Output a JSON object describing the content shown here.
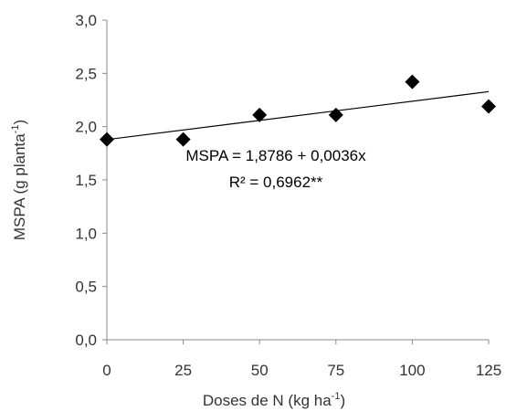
{
  "chart_data": {
    "type": "scatter",
    "xlabel": {
      "main": "Doses de N (kg ha",
      "sup": "-1",
      "end": ")"
    },
    "ylabel": {
      "main": "MSPA (g planta",
      "sup": "-1",
      "end": ")"
    },
    "x": [
      0,
      25,
      50,
      75,
      100,
      125
    ],
    "y": [
      1.88,
      1.88,
      2.11,
      2.11,
      2.42,
      2.19
    ],
    "xticks": [
      "0",
      "25",
      "50",
      "75",
      "100",
      "125"
    ],
    "xtick_values": [
      0,
      25,
      50,
      75,
      100,
      125
    ],
    "yticks": [
      "0,0",
      "0,5",
      "1,0",
      "1,5",
      "2,0",
      "2,5",
      "3,0"
    ],
    "ytick_values": [
      0,
      0.5,
      1.0,
      1.5,
      2.0,
      2.5,
      3.0
    ],
    "xlim": [
      0,
      125
    ],
    "ylim": [
      0,
      3.0
    ],
    "grid": false,
    "marker": "diamond",
    "marker_color": "#000000",
    "trendline": {
      "intercept": 1.8786,
      "slope": 0.0036,
      "color": "#000000"
    },
    "annotations": {
      "equation": "MSPA = 1,8786 + 0,0036x",
      "r2": "R² = 0,6962**"
    }
  }
}
